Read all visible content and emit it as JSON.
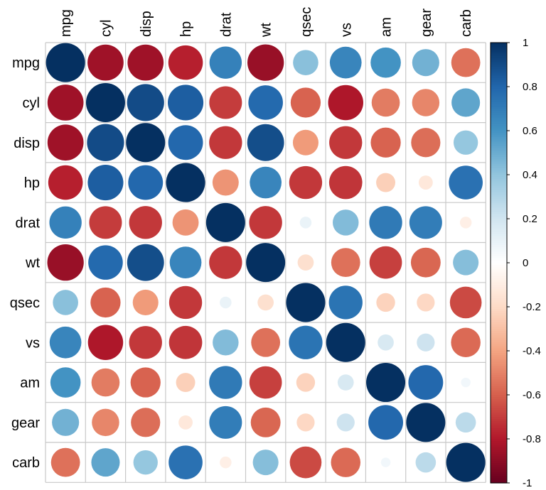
{
  "chart_data": {
    "type": "heatmap",
    "title": "",
    "variables": [
      "mpg",
      "cyl",
      "disp",
      "hp",
      "drat",
      "wt",
      "qsec",
      "vs",
      "am",
      "gear",
      "carb"
    ],
    "matrix": [
      [
        1,
        -0.85,
        -0.85,
        -0.78,
        0.68,
        -0.87,
        0.42,
        0.66,
        0.6,
        0.48,
        -0.55
      ],
      [
        -0.85,
        1,
        0.9,
        0.83,
        -0.7,
        0.78,
        -0.59,
        -0.81,
        -0.52,
        -0.49,
        0.53
      ],
      [
        -0.85,
        0.9,
        1,
        0.79,
        -0.71,
        0.89,
        -0.43,
        -0.71,
        -0.59,
        -0.56,
        0.39
      ],
      [
        -0.78,
        0.83,
        0.79,
        1,
        -0.45,
        0.66,
        -0.71,
        -0.72,
        -0.24,
        -0.13,
        0.75
      ],
      [
        0.68,
        -0.7,
        -0.71,
        -0.45,
        1,
        -0.71,
        0.09,
        0.44,
        0.71,
        0.7,
        -0.09
      ],
      [
        -0.87,
        0.78,
        0.89,
        0.66,
        -0.71,
        1,
        -0.17,
        -0.55,
        -0.69,
        -0.58,
        0.43
      ],
      [
        0.42,
        -0.59,
        -0.43,
        -0.71,
        0.09,
        -0.17,
        1,
        0.74,
        -0.23,
        -0.21,
        -0.66
      ],
      [
        0.66,
        -0.81,
        -0.71,
        -0.72,
        0.44,
        -0.55,
        0.74,
        1,
        0.17,
        0.21,
        -0.57
      ],
      [
        0.6,
        -0.52,
        -0.59,
        -0.24,
        0.71,
        -0.69,
        -0.23,
        0.17,
        1,
        0.79,
        0.06
      ],
      [
        0.48,
        -0.49,
        -0.56,
        -0.13,
        0.7,
        -0.58,
        -0.21,
        0.21,
        0.79,
        1,
        0.27
      ],
      [
        -0.55,
        0.53,
        0.39,
        0.75,
        -0.09,
        0.43,
        -0.66,
        -0.57,
        0.06,
        0.27,
        1
      ]
    ],
    "colorbar": {
      "range": [
        -1,
        1
      ],
      "ticks": [
        "1",
        "0.8",
        "0.6",
        "0.4",
        "0.2",
        "0",
        "-0.2",
        "-0.4",
        "-0.6",
        "-0.8",
        "-1"
      ],
      "tick_values": [
        1,
        0.8,
        0.6,
        0.4,
        0.2,
        0,
        -0.2,
        -0.4,
        -0.6,
        -0.8,
        -1
      ],
      "colors": [
        "#67001F",
        "#B2182B",
        "#D6604D",
        "#F4A582",
        "#FDDBC7",
        "#FFFFFF",
        "#D1E5F0",
        "#92C5DE",
        "#4393C3",
        "#2166AC",
        "#053061"
      ]
    },
    "grid_color": "#C8C8C8"
  }
}
